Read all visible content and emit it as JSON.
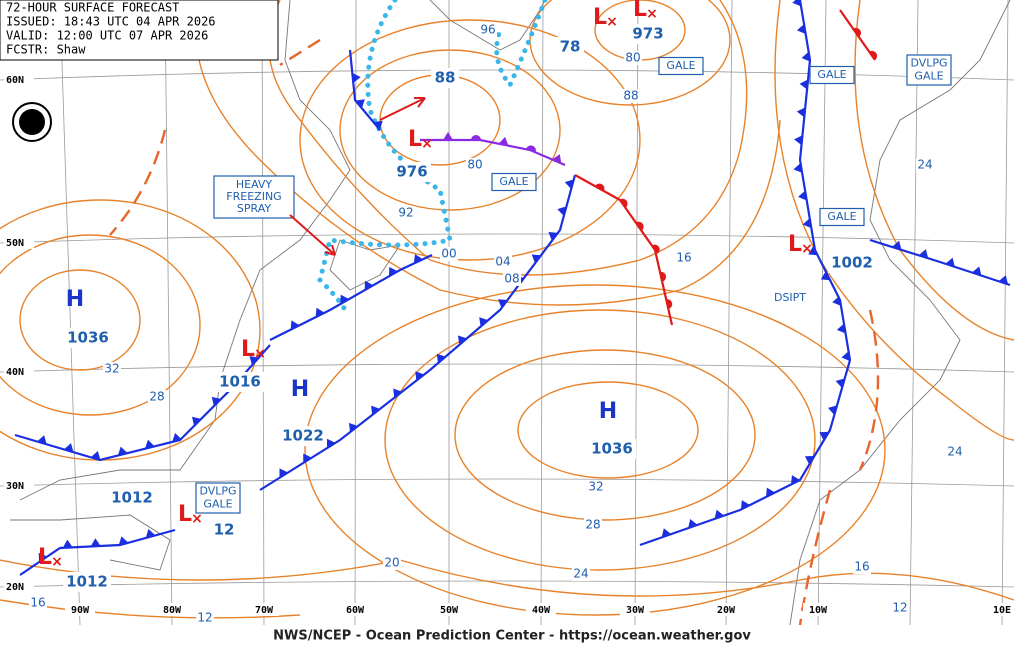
{
  "header": {
    "lines": [
      "72-HOUR SURFACE FORECAST",
      "ISSUED: 18:43 UTC 04 APR 2026",
      "VALID:  12:00 UTC 07 APR 2026",
      "FCSTR: Shaw"
    ]
  },
  "systems": [
    "H",
    "H",
    "H",
    "L",
    "L",
    "L",
    "L",
    "L",
    "L",
    "L"
  ],
  "pressures": [
    88,
    976,
    973,
    78,
    1002,
    1016,
    1022,
    1036,
    1036,
    1012,
    12,
    1012
  ],
  "isobar_labels": [
    "96",
    "80",
    "88",
    "80",
    "92",
    "00",
    "04",
    "08",
    "16",
    "24",
    "32",
    "28",
    "32",
    "28",
    "24",
    "20",
    "24",
    "16",
    "12",
    "16",
    "12"
  ],
  "warnings": [
    {
      "lines": [
        "GALE"
      ]
    },
    {
      "lines": [
        "GALE"
      ]
    },
    {
      "lines": [
        "DVLPG",
        "GALE"
      ]
    },
    {
      "lines": [
        "GALE"
      ]
    },
    {
      "lines": [
        "GALE"
      ]
    },
    {
      "lines": [
        "DVLPG",
        "GALE"
      ]
    }
  ],
  "annotation": {
    "lines": [
      "HEAVY",
      "FREEZING",
      "SPRAY"
    ]
  },
  "dsipt": "DSIPT",
  "lat_labels": [
    "60N",
    "50N",
    "40N",
    "30N",
    "20N"
  ],
  "lon_labels": [
    "90W",
    "80W",
    "70W",
    "60W",
    "50W",
    "40W",
    "30W",
    "20W",
    "10W",
    "10E"
  ],
  "footer": "NWS/NCEP - Ocean Prediction Center - https://ocean.weather.gov"
}
